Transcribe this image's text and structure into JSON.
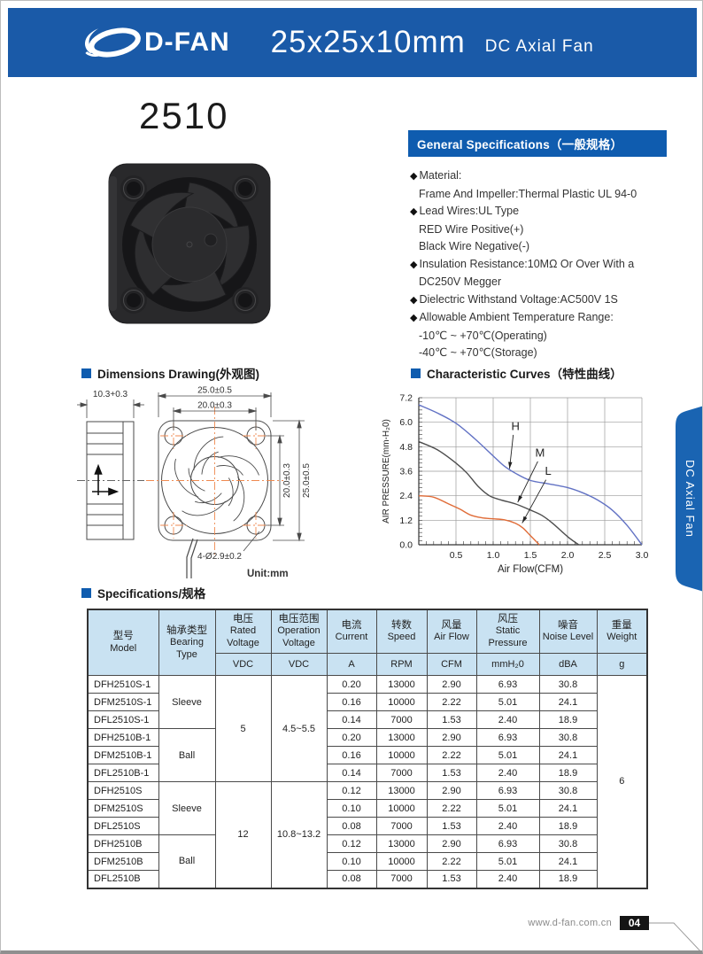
{
  "header": {
    "brand": "D-FAN",
    "size": "25x25x10mm",
    "subtitle": "DC Axial Fan",
    "bg_color": "#1a5aa8"
  },
  "model_title": "2510",
  "side_tab": {
    "label": "DC Axial Fan",
    "bg_color": "#1a64b2"
  },
  "general_specs": {
    "title": "General Specifications（一般规格）",
    "bar_color": "#0f5caf",
    "items": [
      {
        "b": 1,
        "t": "Material:"
      },
      {
        "b": 0,
        "t": "Frame And Impeller:Thermal Plastic UL 94-0"
      },
      {
        "b": 1,
        "t": "Lead Wires:UL Type"
      },
      {
        "b": 0,
        "t": "RED Wire Positive(+)"
      },
      {
        "b": 0,
        "t": "Black Wire Negative(-)"
      },
      {
        "b": 1,
        "t": "Insulation Resistance:10MΩ Or Over With a"
      },
      {
        "b": 0,
        "t": "DC250V Megger"
      },
      {
        "b": 1,
        "t": "Dielectric Withstand Voltage:AC500V 1S"
      },
      {
        "b": 1,
        "t": "Allowable Ambient Temperature Range:"
      },
      {
        "b": 0,
        "t": "-10℃ ~ +70℃(Operating)"
      },
      {
        "b": 0,
        "t": "-40℃ ~ +70℃(Storage)"
      }
    ]
  },
  "dimensions": {
    "title": "Dimensions Drawing(外观图)",
    "unit": "Unit:mm",
    "labels": {
      "side_width": "10.3+0.3",
      "front_width": "25.0±0.5",
      "hole_pitch_h": "20.0±0.3",
      "hole_pitch_v": "20.0±0.3",
      "front_height": "25.0±0.5",
      "holes": "4-Ø2.9±0.2"
    }
  },
  "curves_section": {
    "title": "Characteristic Curves（特性曲线）"
  },
  "chart_data": {
    "type": "line",
    "xlabel": "Air Flow(CFM)",
    "ylabel": "AIR PRESSURE(mm-H₂0)",
    "xlim": [
      0,
      3.0
    ],
    "ylim": [
      0,
      7.2
    ],
    "xticks": [
      0.5,
      1.0,
      1.5,
      2.0,
      2.5,
      3.0
    ],
    "yticks": [
      0.0,
      1.2,
      2.4,
      3.6,
      4.8,
      6.0,
      7.2
    ],
    "minor_x": 0.1,
    "minor_y": 0.2,
    "grid": true,
    "series": [
      {
        "name": "H",
        "color": "#6272c4",
        "points": [
          [
            0,
            6.85
          ],
          [
            0.25,
            6.45
          ],
          [
            0.5,
            5.95
          ],
          [
            0.75,
            5.2
          ],
          [
            1.0,
            4.35
          ],
          [
            1.15,
            3.85
          ],
          [
            1.3,
            3.5
          ],
          [
            1.5,
            3.15
          ],
          [
            1.75,
            2.98
          ],
          [
            2.0,
            2.8
          ],
          [
            2.2,
            2.55
          ],
          [
            2.4,
            2.2
          ],
          [
            2.6,
            1.7
          ],
          [
            2.8,
            0.95
          ],
          [
            3.0,
            0.0
          ]
        ]
      },
      {
        "name": "M",
        "color": "#4d4d4d",
        "points": [
          [
            0,
            5.05
          ],
          [
            0.25,
            4.65
          ],
          [
            0.5,
            4.0
          ],
          [
            0.65,
            3.5
          ],
          [
            0.8,
            2.85
          ],
          [
            0.95,
            2.4
          ],
          [
            1.1,
            2.2
          ],
          [
            1.3,
            2.0
          ],
          [
            1.5,
            1.7
          ],
          [
            1.65,
            1.45
          ],
          [
            1.8,
            1.05
          ],
          [
            2.0,
            0.4
          ],
          [
            2.15,
            0.0
          ]
        ]
      },
      {
        "name": "L",
        "color": "#e06c38",
        "points": [
          [
            0,
            2.4
          ],
          [
            0.2,
            2.33
          ],
          [
            0.4,
            2.0
          ],
          [
            0.55,
            1.75
          ],
          [
            0.7,
            1.45
          ],
          [
            0.85,
            1.32
          ],
          [
            1.0,
            1.27
          ],
          [
            1.15,
            1.22
          ],
          [
            1.3,
            1.05
          ],
          [
            1.4,
            0.82
          ],
          [
            1.5,
            0.45
          ],
          [
            1.62,
            0.0
          ]
        ]
      }
    ],
    "annotations": [
      {
        "label": "H",
        "label_xy": [
          1.3,
          5.62
        ],
        "from": [
          1.27,
          5.38
        ],
        "to": [
          1.22,
          3.72
        ]
      },
      {
        "label": "M",
        "label_xy": [
          1.63,
          4.32
        ],
        "from": [
          1.6,
          4.08
        ],
        "to": [
          1.33,
          2.08
        ]
      },
      {
        "label": "L",
        "label_xy": [
          1.74,
          3.42
        ],
        "from": [
          1.71,
          3.18
        ],
        "to": [
          1.39,
          1.06
        ]
      }
    ]
  },
  "spec_section": {
    "title": "Specifications/规格"
  },
  "spec_table": {
    "header_bg": "#c9e2f2",
    "columns": [
      {
        "cn": "型号",
        "en": "Model",
        "unit": ""
      },
      {
        "cn": "轴承类型",
        "en": "Bearing Type",
        "unit": ""
      },
      {
        "cn": "电压",
        "en": "Rated Voltage",
        "unit": "VDC"
      },
      {
        "cn": "电压范围",
        "en": "Operation Voltage",
        "unit": "VDC"
      },
      {
        "cn": "电流",
        "en": "Current",
        "unit": "A"
      },
      {
        "cn": "转数",
        "en": "Speed",
        "unit": "RPM"
      },
      {
        "cn": "风量",
        "en": "Air Flow",
        "unit": "CFM"
      },
      {
        "cn": "风压",
        "en": "Static Pressure",
        "unit": "mmH₂0"
      },
      {
        "cn": "噪音",
        "en": "Noise Level",
        "unit": "dBA"
      },
      {
        "cn": "重量",
        "en": "Weight",
        "unit": "g"
      }
    ],
    "rows": [
      [
        {
          "v": "DFH2510S-1",
          "cls": "model"
        },
        {
          "v": "Sleeve",
          "rs": 3
        },
        {
          "v": "5",
          "rs": 6
        },
        {
          "v": "4.5~5.5",
          "rs": 6
        },
        {
          "v": "0.20"
        },
        {
          "v": "13000"
        },
        {
          "v": "2.90"
        },
        {
          "v": "6.93"
        },
        {
          "v": "30.8"
        },
        {
          "v": "6",
          "rs": 12
        }
      ],
      [
        {
          "v": "DFM2510S-1",
          "cls": "model"
        },
        {
          "v": "0.16"
        },
        {
          "v": "10000"
        },
        {
          "v": "2.22"
        },
        {
          "v": "5.01"
        },
        {
          "v": "24.1"
        }
      ],
      [
        {
          "v": "DFL2510S-1",
          "cls": "model"
        },
        {
          "v": "0.14"
        },
        {
          "v": "7000"
        },
        {
          "v": "1.53"
        },
        {
          "v": "2.40"
        },
        {
          "v": "18.9"
        }
      ],
      [
        {
          "v": "DFH2510B-1",
          "cls": "model"
        },
        {
          "v": "Ball",
          "rs": 3
        },
        {
          "v": "0.20"
        },
        {
          "v": "13000"
        },
        {
          "v": "2.90"
        },
        {
          "v": "6.93"
        },
        {
          "v": "30.8"
        }
      ],
      [
        {
          "v": "DFM2510B-1",
          "cls": "model"
        },
        {
          "v": "0.16"
        },
        {
          "v": "10000"
        },
        {
          "v": "2.22"
        },
        {
          "v": "5.01"
        },
        {
          "v": "24.1"
        }
      ],
      [
        {
          "v": "DFL2510B-1",
          "cls": "model"
        },
        {
          "v": "0.14"
        },
        {
          "v": "7000"
        },
        {
          "v": "1.53"
        },
        {
          "v": "2.40"
        },
        {
          "v": "18.9"
        }
      ],
      [
        {
          "v": "DFH2510S",
          "cls": "model"
        },
        {
          "v": "Sleeve",
          "rs": 3
        },
        {
          "v": "12",
          "rs": 6
        },
        {
          "v": "10.8~13.2",
          "rs": 6
        },
        {
          "v": "0.12"
        },
        {
          "v": "13000"
        },
        {
          "v": "2.90"
        },
        {
          "v": "6.93"
        },
        {
          "v": "30.8"
        }
      ],
      [
        {
          "v": "DFM2510S",
          "cls": "model"
        },
        {
          "v": "0.10"
        },
        {
          "v": "10000"
        },
        {
          "v": "2.22"
        },
        {
          "v": "5.01"
        },
        {
          "v": "24.1"
        }
      ],
      [
        {
          "v": "DFL2510S",
          "cls": "model"
        },
        {
          "v": "0.08"
        },
        {
          "v": "7000"
        },
        {
          "v": "1.53"
        },
        {
          "v": "2.40"
        },
        {
          "v": "18.9"
        }
      ],
      [
        {
          "v": "DFH2510B",
          "cls": "model"
        },
        {
          "v": "Ball",
          "rs": 3
        },
        {
          "v": "0.12"
        },
        {
          "v": "13000"
        },
        {
          "v": "2.90"
        },
        {
          "v": "6.93"
        },
        {
          "v": "30.8"
        }
      ],
      [
        {
          "v": "DFM2510B",
          "cls": "model"
        },
        {
          "v": "0.10"
        },
        {
          "v": "10000"
        },
        {
          "v": "2.22"
        },
        {
          "v": "5.01"
        },
        {
          "v": "24.1"
        }
      ],
      [
        {
          "v": "DFL2510B",
          "cls": "model"
        },
        {
          "v": "0.08"
        },
        {
          "v": "7000"
        },
        {
          "v": "1.53"
        },
        {
          "v": "2.40"
        },
        {
          "v": "18.9"
        }
      ]
    ]
  },
  "footer": {
    "url": "www.d-fan.com.cn",
    "page": "04"
  }
}
